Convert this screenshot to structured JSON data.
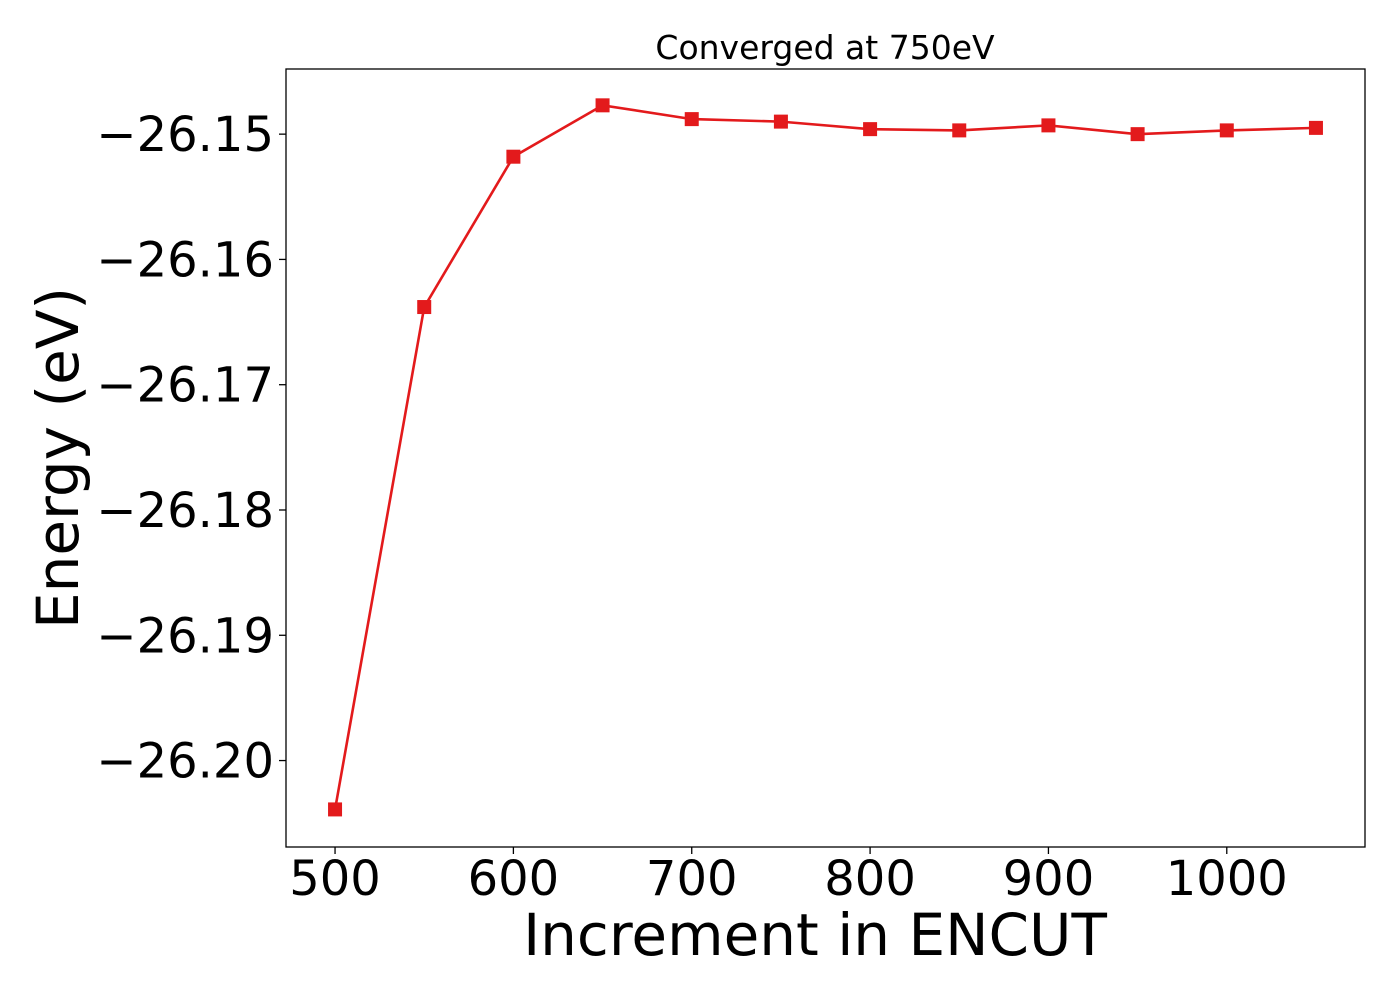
{
  "chart_data": {
    "type": "line",
    "title": "Converged at 750eV",
    "xlabel": "Increment in ENCUT",
    "ylabel": "Energy (eV)",
    "xlim": [
      472.5,
      1077.5
    ],
    "ylim": [
      -26.2069,
      -26.1448
    ],
    "x_ticks": [
      500,
      600,
      700,
      800,
      900,
      1000
    ],
    "x_tick_labels": [
      "500",
      "600",
      "700",
      "800",
      "900",
      "1000"
    ],
    "y_ticks": [
      -26.15,
      -26.16,
      -26.17,
      -26.18,
      -26.19,
      -26.2
    ],
    "y_tick_labels": [
      "−26.15",
      "−26.16",
      "−26.17",
      "−26.18",
      "−26.19",
      "−26.20"
    ],
    "grid": false,
    "series": [
      {
        "color": "#e31a1c",
        "marker": "square",
        "x": [
          500,
          550,
          600,
          650,
          700,
          750,
          800,
          850,
          900,
          950,
          1000,
          1050
        ],
        "y": [
          -26.2039,
          -26.1638,
          -26.1518,
          -26.1477,
          -26.1488,
          -26.149,
          -26.1496,
          -26.1497,
          -26.1493,
          -26.15,
          -26.1497,
          -26.1495
        ]
      }
    ]
  }
}
